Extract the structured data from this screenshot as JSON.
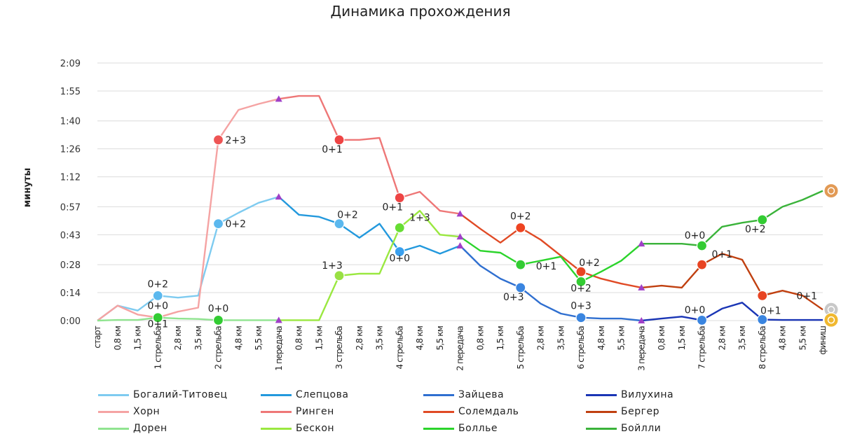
{
  "chart_data": {
    "type": "line",
    "title": "Динамика прохождения",
    "ylabel": "минуты",
    "xlabel": "",
    "ylim": [
      0,
      129
    ],
    "y_ticks": [
      {
        "label": "0:00",
        "v": 0
      },
      {
        "label": "0:14",
        "v": 14
      },
      {
        "label": "0:28",
        "v": 28
      },
      {
        "label": "0:43",
        "v": 43
      },
      {
        "label": "0:57",
        "v": 57
      },
      {
        "label": "1:12",
        "v": 72
      },
      {
        "label": "1:26",
        "v": 86
      },
      {
        "label": "1:40",
        "v": 100
      },
      {
        "label": "1:55",
        "v": 115
      },
      {
        "label": "2:09",
        "v": 129
      }
    ],
    "categories": [
      "старт",
      "0,8 км",
      "1,5 км",
      "1 стрельба",
      "2,8 км",
      "3,5 км",
      "2 стрельба",
      "4,8 км",
      "5,5 км",
      "1 передача",
      "0,8 км",
      "1,5 км",
      "3 стрельба",
      "2,8 км",
      "3,5 км",
      "4 стрельба",
      "4,8 км",
      "5,5 км",
      "2 передача",
      "0,8 км",
      "1,5 км",
      "5 стрельба",
      "2,8 км",
      "3,5 км",
      "6 стрельба",
      "4,8 км",
      "5,5 км",
      "3 передача",
      "0,8 км",
      "1,5 км",
      "7 стрельба",
      "2,8 км",
      "3,5 км",
      "8 стрельба",
      "4,8 км",
      "5,5 км",
      "финиш"
    ],
    "series": [
      {
        "name": "Богалий-Титовец",
        "color": "#7ecbf0",
        "points": [
          [
            0,
            0
          ],
          [
            1,
            7.5
          ],
          [
            2,
            5
          ],
          [
            3,
            12.5
          ],
          [
            4,
            11.5
          ],
          [
            5,
            12.5
          ],
          [
            6,
            48.5
          ],
          [
            7,
            54
          ],
          [
            8,
            59
          ],
          [
            9,
            62
          ]
        ]
      },
      {
        "name": "Слепцова",
        "color": "#2399dd",
        "points": [
          [
            9,
            62
          ],
          [
            10,
            53
          ],
          [
            11,
            52
          ],
          [
            12,
            48.5
          ],
          [
            13,
            41.5
          ],
          [
            14,
            48.5
          ],
          [
            15,
            34.5
          ],
          [
            16,
            37.5
          ],
          [
            17,
            33.5
          ],
          [
            18,
            37.5
          ]
        ]
      },
      {
        "name": "Зайцева",
        "color": "#2f6fd0",
        "points": [
          [
            18,
            37.5
          ],
          [
            19,
            27.5
          ],
          [
            20,
            21
          ],
          [
            21,
            16.5
          ],
          [
            22,
            8.5
          ],
          [
            23,
            3.5
          ],
          [
            24,
            1.5
          ],
          [
            25,
            1
          ],
          [
            26,
            1
          ],
          [
            27,
            0
          ]
        ]
      },
      {
        "name": "Вилухина",
        "color": "#1a35b5",
        "points": [
          [
            27,
            0
          ],
          [
            28,
            1
          ],
          [
            29,
            2
          ],
          [
            30,
            0.2
          ],
          [
            31,
            6
          ],
          [
            32,
            9
          ],
          [
            33,
            0.5
          ],
          [
            34,
            0.3
          ],
          [
            35,
            0.3
          ],
          [
            36,
            0.3
          ]
        ]
      },
      {
        "name": "Хорн",
        "color": "#f5a3a3",
        "points": [
          [
            0,
            0
          ],
          [
            1,
            7.5
          ],
          [
            2,
            3
          ],
          [
            3,
            1.5
          ],
          [
            4,
            4.5
          ],
          [
            5,
            6.5
          ],
          [
            6,
            90.5
          ],
          [
            7,
            105.5
          ],
          [
            8,
            108.5
          ],
          [
            9,
            111
          ]
        ]
      },
      {
        "name": "Ринген",
        "color": "#ee7777",
        "points": [
          [
            9,
            111
          ],
          [
            10,
            112.5
          ],
          [
            11,
            112.5
          ],
          [
            12,
            90.5
          ],
          [
            13,
            90.5
          ],
          [
            14,
            91.5
          ],
          [
            15,
            61.5
          ],
          [
            16,
            64.5
          ],
          [
            17,
            55
          ],
          [
            18,
            53.5
          ]
        ]
      },
      {
        "name": "Солемдаль",
        "color": "#e04a25",
        "points": [
          [
            18,
            53.5
          ],
          [
            19,
            46
          ],
          [
            20,
            39
          ],
          [
            21,
            46.5
          ],
          [
            22,
            40.5
          ],
          [
            23,
            32.5
          ],
          [
            24,
            24.5
          ],
          [
            25,
            21
          ],
          [
            26,
            18.5
          ],
          [
            27,
            16.5
          ]
        ]
      },
      {
        "name": "Бергер",
        "color": "#c04010",
        "points": [
          [
            27,
            16.5
          ],
          [
            28,
            17.5
          ],
          [
            29,
            16.5
          ],
          [
            30,
            28
          ],
          [
            31,
            33.5
          ],
          [
            32,
            30.5
          ],
          [
            33,
            12.5
          ],
          [
            34,
            15
          ],
          [
            35,
            12.5
          ],
          [
            36,
            5.5
          ]
        ]
      },
      {
        "name": "Дорен",
        "color": "#90e490",
        "points": [
          [
            0,
            0
          ],
          [
            1,
            0.3
          ],
          [
            2,
            0.3
          ],
          [
            3,
            1.5
          ],
          [
            4,
            1
          ],
          [
            5,
            0.8
          ],
          [
            6,
            0.2
          ],
          [
            7,
            0.2
          ],
          [
            8,
            0.2
          ],
          [
            9,
            0.2
          ]
        ]
      },
      {
        "name": "Бескон",
        "color": "#9ae840",
        "points": [
          [
            9,
            0.2
          ],
          [
            10,
            0.2
          ],
          [
            11,
            0.2
          ],
          [
            12,
            22.5
          ],
          [
            13,
            23.5
          ],
          [
            14,
            23.5
          ],
          [
            15,
            46.5
          ],
          [
            16,
            55
          ],
          [
            17,
            43
          ],
          [
            18,
            42
          ]
        ]
      },
      {
        "name": "Болльe",
        "color": "#2bd42b",
        "points": [
          [
            18,
            42
          ],
          [
            19,
            35
          ],
          [
            20,
            34
          ],
          [
            21,
            28
          ],
          [
            22,
            30
          ],
          [
            23,
            32
          ],
          [
            24,
            19.5
          ],
          [
            25,
            24.5
          ],
          [
            26,
            30
          ],
          [
            27,
            38.5
          ]
        ]
      },
      {
        "name": "Бойлли",
        "color": "#3ab33a",
        "points": [
          [
            27,
            38.5
          ],
          [
            28,
            38.5
          ],
          [
            29,
            38.5
          ],
          [
            30,
            37.5
          ],
          [
            31,
            47
          ],
          [
            32,
            49
          ],
          [
            33,
            50.5
          ],
          [
            34,
            57
          ],
          [
            35,
            60.5
          ],
          [
            36,
            65
          ]
        ]
      }
    ],
    "markers": [
      {
        "x": 3,
        "y": 12.5,
        "color": "#5bb8ee"
      },
      {
        "x": 3,
        "y": 1.5,
        "color": "#33cc33"
      },
      {
        "x": 6,
        "y": 48.5,
        "color": "#5bb8ee"
      },
      {
        "x": 6,
        "y": 90.5,
        "color": "#ee5555"
      },
      {
        "x": 6,
        "y": 0.2,
        "color": "#33cc33"
      },
      {
        "x": 12,
        "y": 48.5,
        "color": "#5bb8ee"
      },
      {
        "x": 12,
        "y": 90.5,
        "color": "#ee4444"
      },
      {
        "x": 12,
        "y": 22.5,
        "color": "#99e044"
      },
      {
        "x": 15,
        "y": 34.5,
        "color": "#3aa0ee"
      },
      {
        "x": 15,
        "y": 61.5,
        "color": "#ee4444"
      },
      {
        "x": 15,
        "y": 46.5,
        "color": "#66dd33"
      },
      {
        "x": 21,
        "y": 16.5,
        "color": "#3a85e0"
      },
      {
        "x": 21,
        "y": 46.5,
        "color": "#ee4422"
      },
      {
        "x": 21,
        "y": 28,
        "color": "#33cc33"
      },
      {
        "x": 24,
        "y": 1.5,
        "color": "#3a85e0"
      },
      {
        "x": 24,
        "y": 24.5,
        "color": "#e84422"
      },
      {
        "x": 24,
        "y": 19.5,
        "color": "#33cc33"
      },
      {
        "x": 30,
        "y": 0.2,
        "color": "#3a85e0"
      },
      {
        "x": 30,
        "y": 28,
        "color": "#e84422"
      },
      {
        "x": 30,
        "y": 37.5,
        "color": "#33cc33"
      },
      {
        "x": 33,
        "y": 0.5,
        "color": "#3a85e0"
      },
      {
        "x": 33,
        "y": 12.5,
        "color": "#e84422"
      },
      {
        "x": 33,
        "y": 50.5,
        "color": "#33cc33"
      }
    ],
    "handoffs": [
      {
        "x": 9,
        "y": 111
      },
      {
        "x": 9,
        "y": 62
      },
      {
        "x": 9,
        "y": 0.2
      },
      {
        "x": 18,
        "y": 53.5
      },
      {
        "x": 18,
        "y": 42
      },
      {
        "x": 18,
        "y": 37.5
      },
      {
        "x": 27,
        "y": 38.5
      },
      {
        "x": 27,
        "y": 16.5
      },
      {
        "x": 27,
        "y": 0
      }
    ],
    "annotations": [
      {
        "text": "0+2",
        "x": 3,
        "y": 12.5,
        "pos": "above"
      },
      {
        "text": "0+0",
        "x": 3,
        "y": 1.5,
        "pos": "above"
      },
      {
        "text": "0+1",
        "x": 3,
        "y": 1.5,
        "pos": "below"
      },
      {
        "text": "2+3",
        "x": 6,
        "y": 90.5,
        "pos": "right"
      },
      {
        "text": "0+2",
        "x": 6,
        "y": 48.5,
        "pos": "right"
      },
      {
        "text": "0+0",
        "x": 6,
        "y": 0.2,
        "pos": "above"
      },
      {
        "text": "0+1",
        "x": 12,
        "y": 90.5,
        "pos": "belowleft"
      },
      {
        "text": "0+2",
        "x": 12,
        "y": 48.5,
        "pos": "aboveright"
      },
      {
        "text": "1+3",
        "x": 12,
        "y": 22.5,
        "pos": "aboveleft"
      },
      {
        "text": "1+3",
        "x": 15,
        "y": 46.5,
        "pos": "belowright"
      },
      {
        "text": "0+1",
        "x": 15,
        "y": 61.5,
        "pos": "belowleft"
      },
      {
        "text": "0+0",
        "x": 15,
        "y": 34.5,
        "pos": "below"
      },
      {
        "text": "0+2",
        "x": 21,
        "y": 46.5,
        "pos": "above"
      },
      {
        "text": "0+1",
        "x": 21,
        "y": 28,
        "pos": "farright"
      },
      {
        "text": "0+3",
        "x": 21,
        "y": 16.5,
        "pos": "belowleft"
      },
      {
        "text": "0+2",
        "x": 24,
        "y": 24.5,
        "pos": "aboveright"
      },
      {
        "text": "0+2",
        "x": 24,
        "y": 19.5,
        "pos": "below"
      },
      {
        "text": "0+3",
        "x": 24,
        "y": 1.5,
        "pos": "above"
      },
      {
        "text": "0+0",
        "x": 30,
        "y": 37.5,
        "pos": "aboveleft"
      },
      {
        "text": "0+1",
        "x": 30,
        "y": 28,
        "pos": "belowright"
      },
      {
        "text": "0+0",
        "x": 30,
        "y": 0.2,
        "pos": "aboveleft"
      },
      {
        "text": "0+2",
        "x": 33,
        "y": 50.5,
        "pos": "belowleft"
      },
      {
        "text": "0+1",
        "x": 34,
        "y": 12.5,
        "pos": "belowright2"
      },
      {
        "text": "0+1",
        "x": 33,
        "y": 0.5,
        "pos": "aboveright"
      }
    ],
    "legend_placement": "bottom",
    "medals": [
      {
        "name": "bronze-medal-icon",
        "y": 65,
        "color": "#e29a55"
      },
      {
        "name": "silver-medal-icon",
        "y": 5.5,
        "color": "#c8c8c8"
      },
      {
        "name": "gold-medal-icon",
        "y": 0.3,
        "color": "#f0b830"
      }
    ]
  }
}
